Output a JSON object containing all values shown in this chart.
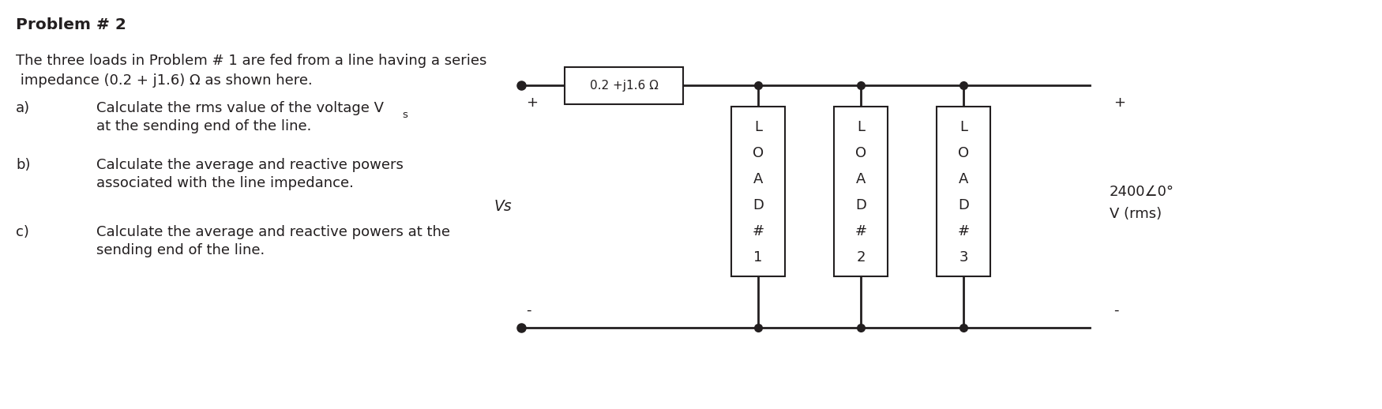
{
  "title": "Problem # 2",
  "bg_color": "#ffffff",
  "text_color": "#231f20",
  "intro_line1": "The three loads in Problem # 1 are fed from a line having a series",
  "intro_line2": " impedance (0.2 + j1.6) Ω as shown here.",
  "items": [
    {
      "label": "a)",
      "line1_main": "Calculate the rms value of the voltage V",
      "line1_sub": "s",
      "line2": "at the sending end of the line."
    },
    {
      "label": "b)",
      "line1_main": "Calculate the average and reactive powers",
      "line1_sub": "",
      "line2": "associated with the line impedance."
    },
    {
      "label": "c)",
      "line1_main": "Calculate the average and reactive powers at the",
      "line1_sub": "",
      "line2": "sending end of the line."
    }
  ],
  "impedance_label": "0.2 +j1.6 Ω",
  "vs_label": "Vs",
  "plus_label": "+",
  "minus_label": "-",
  "voltage_label": "2400∠0°",
  "voltage_unit": "V (rms)",
  "voltage_minus": "-",
  "voltage_plus": "+"
}
